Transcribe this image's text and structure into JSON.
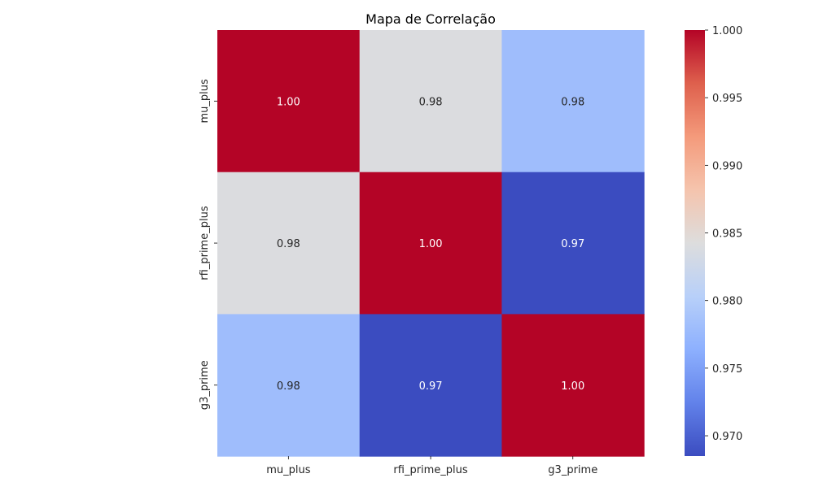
{
  "chart_data": {
    "type": "heatmap",
    "title": "Mapa de Correlação",
    "xlabel": "",
    "ylabel": "",
    "x_categories": [
      "mu_plus",
      "rfi_prime_plus",
      "g3_prime"
    ],
    "y_categories": [
      "mu_plus",
      "rfi_prime_plus",
      "g3_prime"
    ],
    "values": [
      [
        1.0,
        0.984,
        0.978
      ],
      [
        0.984,
        1.0,
        0.9685
      ],
      [
        0.978,
        0.9685,
        1.0
      ]
    ],
    "annotations": [
      [
        "1.00",
        "0.98",
        "0.98"
      ],
      [
        "0.98",
        "1.00",
        "0.97"
      ],
      [
        "0.98",
        "0.97",
        "1.00"
      ]
    ],
    "colormap": "coolwarm",
    "colorbar": {
      "range": [
        0.9685,
        1.0
      ],
      "ticks": [
        "1.000",
        "0.995",
        "0.990",
        "0.985",
        "0.980",
        "0.975",
        "0.970"
      ]
    },
    "colors": {
      "dark_blue": "#3b4cc0",
      "light_blue": "#97b8ff",
      "neutral_gray": "#d5dbe5",
      "dark_red": "#b40426",
      "annotation_on_dark": "#ffffff",
      "annotation_on_light": "#262626"
    }
  }
}
